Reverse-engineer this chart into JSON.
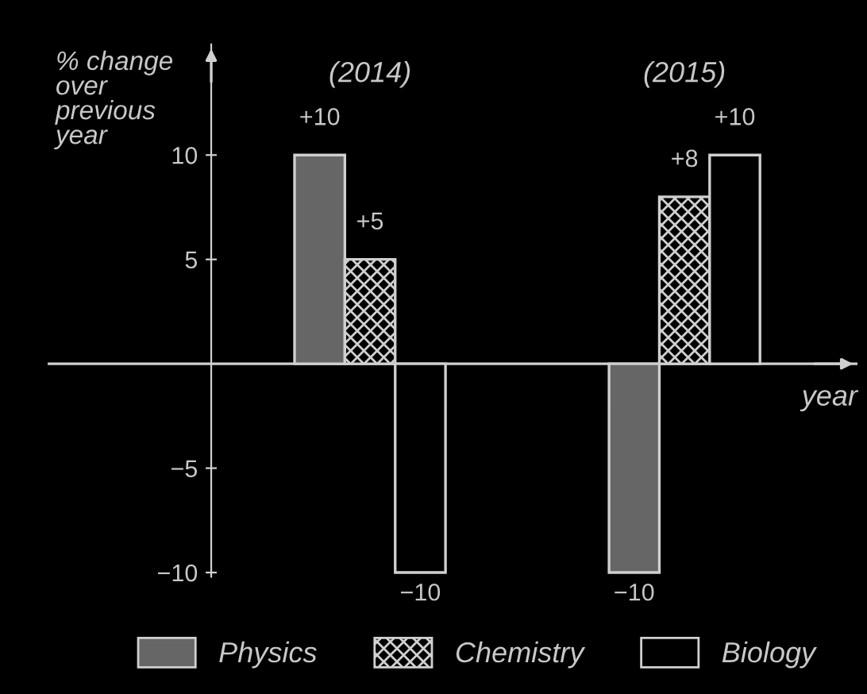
{
  "chart_data": {
    "type": "bar",
    "categories": [
      "(2014)",
      "(2015)"
    ],
    "ylabel": "% change\nover\nprevious\nyear",
    "xlabel": "year",
    "ylim": [
      -10.2,
      15.3
    ],
    "yticks": [
      10,
      5,
      {
        "value": -5,
        "label": "−5"
      },
      {
        "value": -10,
        "label": "−10"
      }
    ],
    "series": [
      {
        "name": "Physics",
        "color": "#666666",
        "values": [
          10,
          -10
        ],
        "value_labels": [
          "+10",
          "−10"
        ]
      },
      {
        "name": "Chemistry",
        "color": "#d0d0d0",
        "values": [
          5,
          8
        ],
        "value_labels": [
          "+5",
          "+8"
        ]
      },
      {
        "name": "Biology",
        "color": "#000000",
        "values": [
          -10,
          10
        ],
        "value_labels": [
          "−10",
          "+10"
        ]
      }
    ],
    "legend": "bottom",
    "grid": false
  }
}
